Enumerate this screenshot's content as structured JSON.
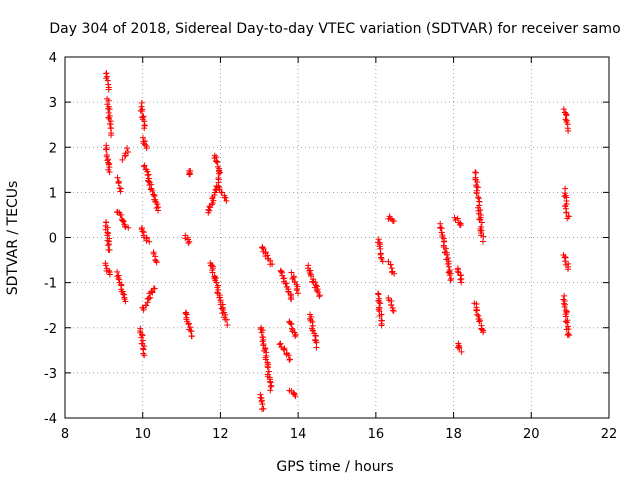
{
  "chart_data": {
    "type": "scatter",
    "title": "Day 304 of 2018, Sidereal Day-to-day VTEC variation (SDTVAR) for receiver samo",
    "xlabel": "GPS time / hours",
    "ylabel": "SDTVAR / TECUs",
    "xlim": [
      8,
      22
    ],
    "ylim": [
      -4,
      4
    ],
    "xticks": [
      "8",
      "10",
      "12",
      "14",
      "16",
      "18",
      "20",
      "22"
    ],
    "yticks": [
      "-4",
      "-3",
      "-2",
      "-1",
      "0",
      "1",
      "2",
      "3",
      "4"
    ],
    "grid": true,
    "marker": "+",
    "color": "#ff0000",
    "segments": [
      {
        "x0": 9.05,
        "x1": 9.12,
        "y0": 3.65,
        "y1": 3.3
      },
      {
        "x0": 9.1,
        "x1": 9.18,
        "y0": 3.05,
        "y1": 2.3
      },
      {
        "x0": 9.05,
        "x1": 9.15,
        "y0": 2.05,
        "y1": 1.45
      },
      {
        "x0": 9.05,
        "x1": 9.15,
        "y0": 0.35,
        "y1": -0.3
      },
      {
        "x0": 9.05,
        "x1": 9.15,
        "y0": -0.6,
        "y1": -0.85
      },
      {
        "x0": 9.35,
        "x1": 9.6,
        "y0": 0.6,
        "y1": 0.2
      },
      {
        "x0": 9.35,
        "x1": 9.45,
        "y0": 1.3,
        "y1": 1.05
      },
      {
        "x0": 9.5,
        "x1": 9.62,
        "y0": 1.75,
        "y1": 1.95
      },
      {
        "x0": 9.35,
        "x1": 9.55,
        "y0": -0.8,
        "y1": -1.4
      },
      {
        "x0": 9.95,
        "x1": 10.05,
        "y0": 2.95,
        "y1": 2.4
      },
      {
        "x0": 10.0,
        "x1": 10.1,
        "y0": 2.2,
        "y1": 1.95
      },
      {
        "x0": 10.05,
        "x1": 10.4,
        "y0": 1.6,
        "y1": 0.6
      },
      {
        "x0": 9.95,
        "x1": 10.15,
        "y0": 0.2,
        "y1": -0.1
      },
      {
        "x0": 10.25,
        "x1": 10.35,
        "y0": -0.35,
        "y1": -0.55
      },
      {
        "x0": 10.0,
        "x1": 10.3,
        "y0": -1.6,
        "y1": -1.1
      },
      {
        "x0": 9.95,
        "x1": 10.05,
        "y0": -2.0,
        "y1": -2.6
      },
      {
        "x0": 11.1,
        "x1": 11.2,
        "y0": 0.05,
        "y1": -0.1
      },
      {
        "x0": 11.2,
        "x1": 11.22,
        "y0": 1.45,
        "y1": 1.4
      },
      {
        "x0": 11.1,
        "x1": 11.25,
        "y0": -1.65,
        "y1": -2.2
      },
      {
        "x0": 11.7,
        "x1": 11.95,
        "y0": 0.55,
        "y1": 1.3
      },
      {
        "x0": 11.85,
        "x1": 12.0,
        "y0": 1.85,
        "y1": 1.4
      },
      {
        "x0": 11.95,
        "x1": 12.15,
        "y0": 1.1,
        "y1": 0.85
      },
      {
        "x0": 11.75,
        "x1": 12.15,
        "y0": -0.55,
        "y1": -1.9
      },
      {
        "x0": 13.05,
        "x1": 13.3,
        "y0": -0.2,
        "y1": -0.6
      },
      {
        "x0": 13.05,
        "x1": 13.3,
        "y0": -2.0,
        "y1": -3.35
      },
      {
        "x0": 13.0,
        "x1": 13.1,
        "y0": -3.5,
        "y1": -3.8
      },
      {
        "x0": 13.55,
        "x1": 13.85,
        "y0": -0.7,
        "y1": -1.4
      },
      {
        "x0": 13.55,
        "x1": 13.8,
        "y0": -2.35,
        "y1": -2.7
      },
      {
        "x0": 13.75,
        "x1": 13.95,
        "y0": -1.85,
        "y1": -2.15
      },
      {
        "x0": 13.8,
        "x1": 13.95,
        "y0": -3.4,
        "y1": -3.5
      },
      {
        "x0": 13.85,
        "x1": 14.0,
        "y0": -0.8,
        "y1": -1.2
      },
      {
        "x0": 14.25,
        "x1": 14.55,
        "y0": -0.65,
        "y1": -1.3
      },
      {
        "x0": 14.3,
        "x1": 14.5,
        "y0": -1.7,
        "y1": -2.4
      },
      {
        "x0": 16.05,
        "x1": 16.15,
        "y0": -0.05,
        "y1": -0.5
      },
      {
        "x0": 16.05,
        "x1": 16.15,
        "y0": -1.25,
        "y1": -1.95
      },
      {
        "x0": 16.35,
        "x1": 16.45,
        "y0": 0.45,
        "y1": 0.35
      },
      {
        "x0": 16.35,
        "x1": 16.45,
        "y0": -0.55,
        "y1": -0.8
      },
      {
        "x0": 16.35,
        "x1": 16.45,
        "y0": -1.35,
        "y1": -1.65
      },
      {
        "x0": 17.65,
        "x1": 17.95,
        "y0": 0.3,
        "y1": -0.95
      },
      {
        "x0": 18.05,
        "x1": 18.2,
        "y0": 0.45,
        "y1": 0.25
      },
      {
        "x0": 18.1,
        "x1": 18.2,
        "y0": -0.65,
        "y1": -1.0
      },
      {
        "x0": 18.1,
        "x1": 18.18,
        "y0": -2.35,
        "y1": -2.5
      },
      {
        "x0": 18.55,
        "x1": 18.75,
        "y0": 1.45,
        "y1": -0.05
      },
      {
        "x0": 18.55,
        "x1": 18.75,
        "y0": -1.45,
        "y1": -2.1
      },
      {
        "x0": 20.85,
        "x1": 20.95,
        "y0": 2.85,
        "y1": 2.4
      },
      {
        "x0": 20.85,
        "x1": 20.95,
        "y0": 1.05,
        "y1": 0.4
      },
      {
        "x0": 20.85,
        "x1": 20.95,
        "y0": -0.35,
        "y1": -0.7
      },
      {
        "x0": 20.85,
        "x1": 20.95,
        "y0": -1.3,
        "y1": -2.2
      }
    ]
  }
}
